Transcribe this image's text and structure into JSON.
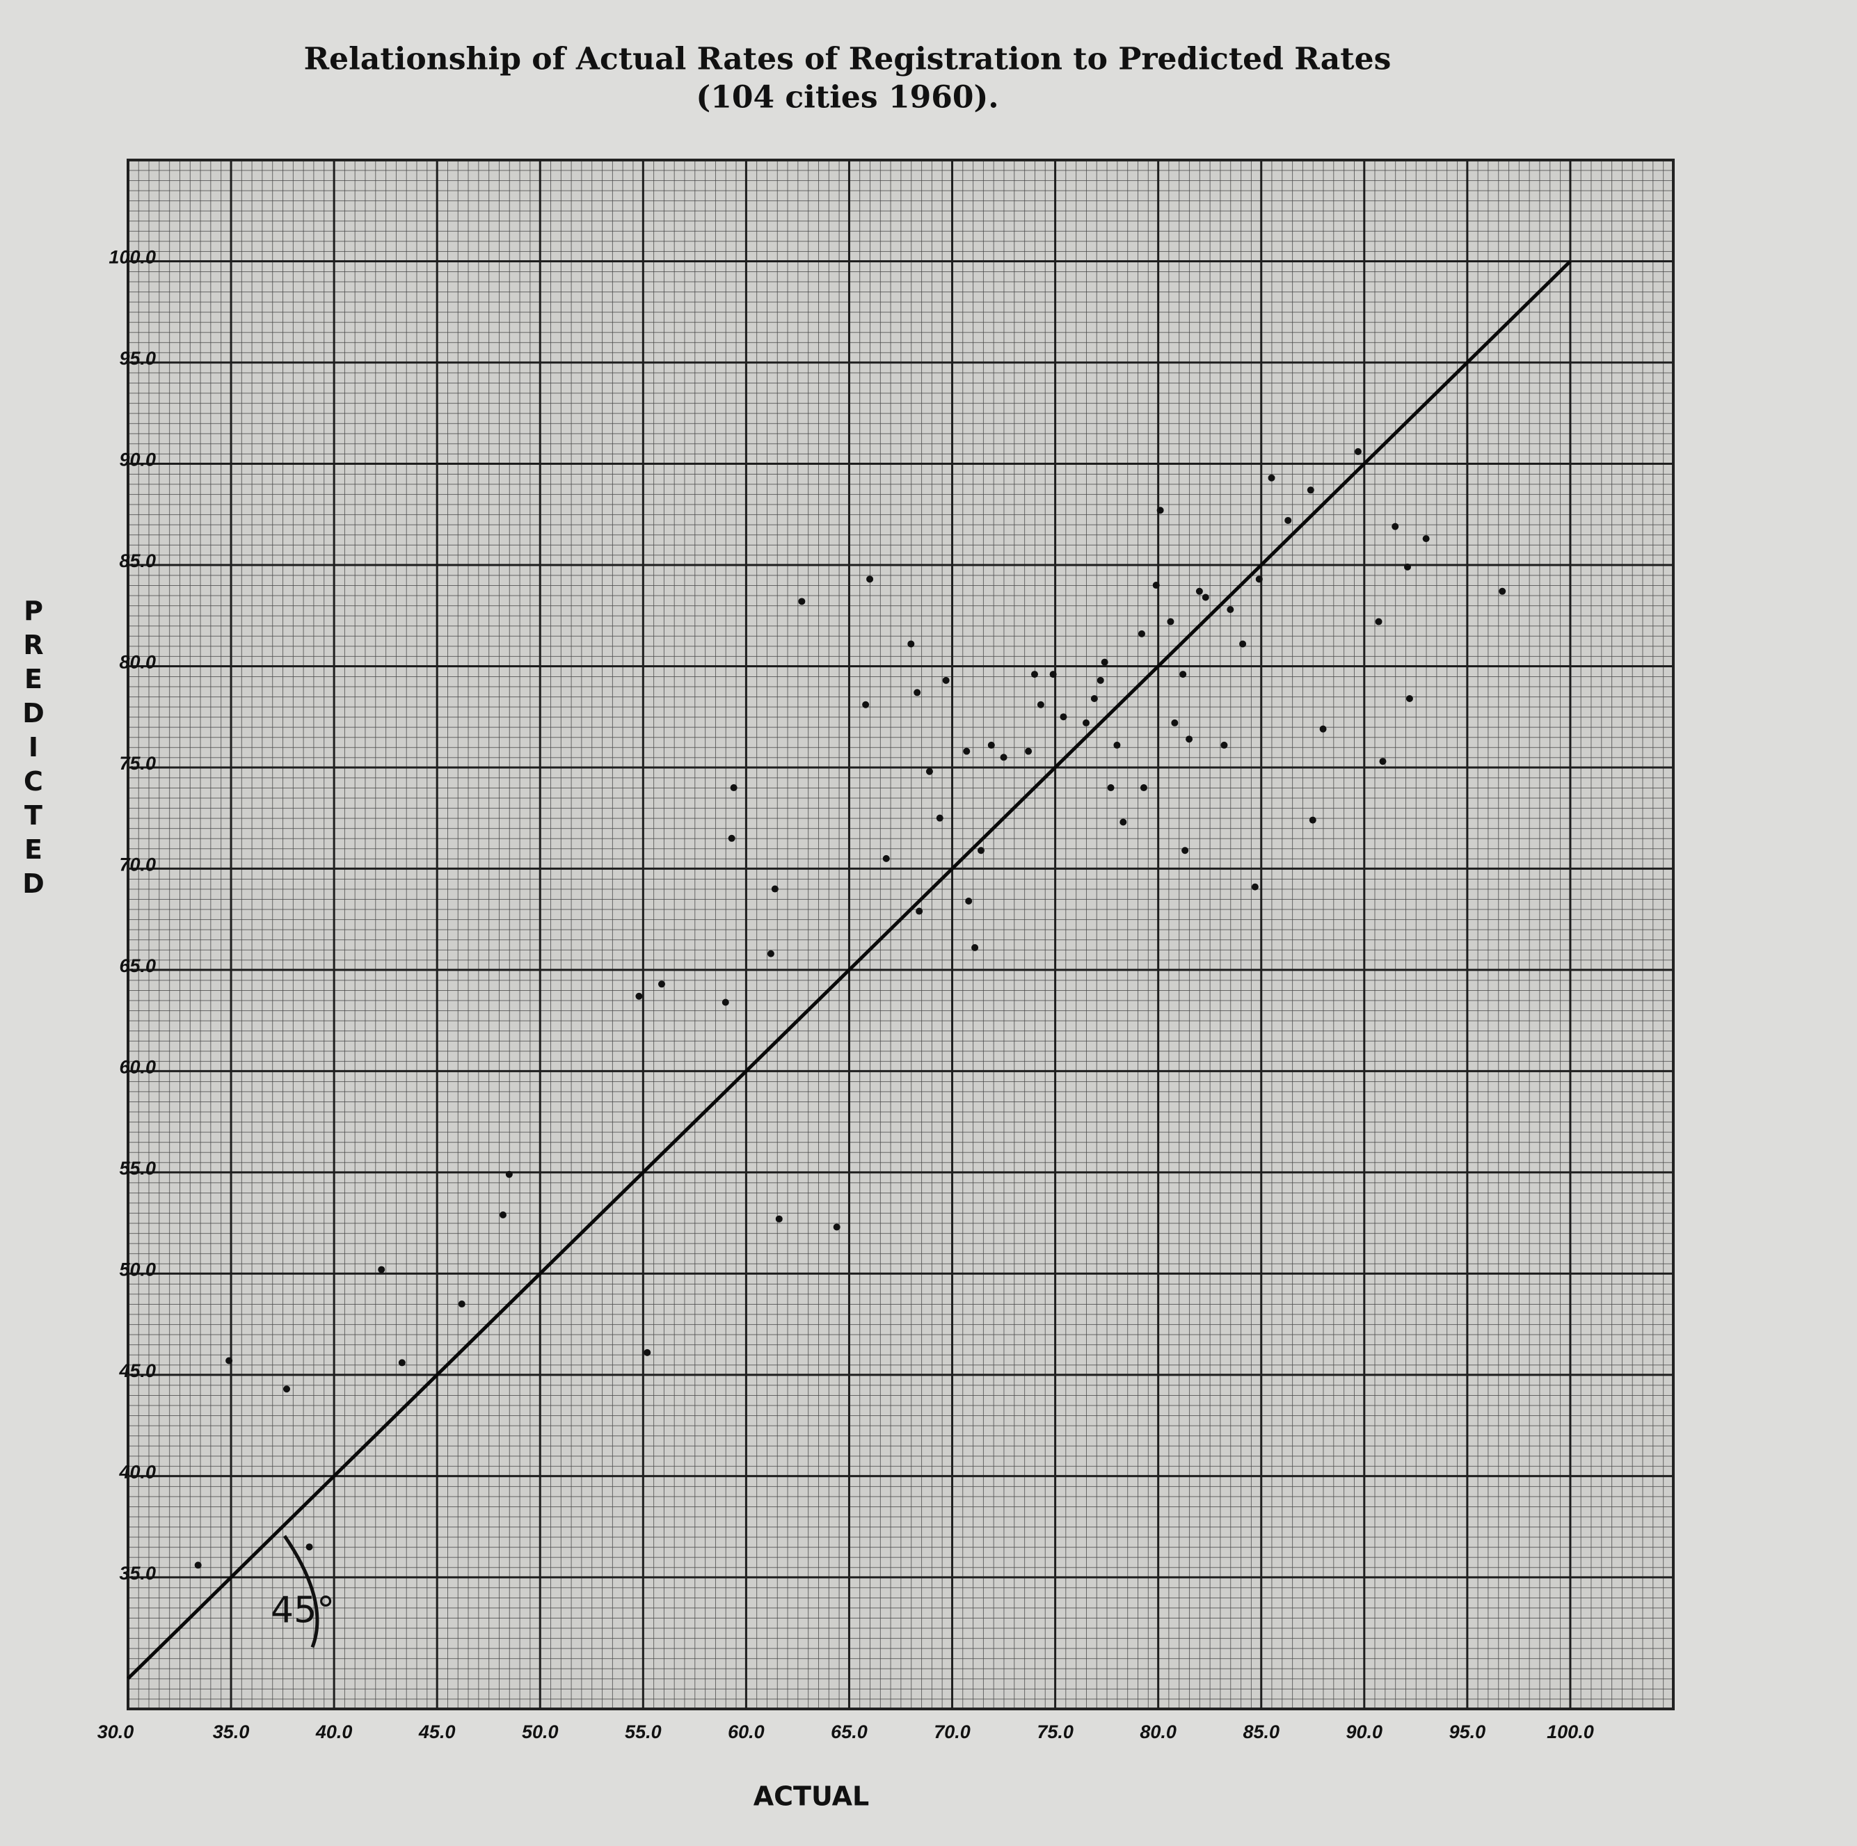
{
  "chart_data": {
    "type": "scatter",
    "title": "Relationship of Actual Rates of Registration to Predicted Rates",
    "subtitle": "(104 cities 1960).",
    "x_label": "ACTUAL",
    "y_label": "PREDICTED",
    "annotation": "45°",
    "color": "#111111",
    "grid": true,
    "xlim": [
      30,
      105
    ],
    "ylim": [
      28.5,
      105
    ],
    "xticks": [
      {
        "value": 30,
        "label": "30.0"
      },
      {
        "value": 35,
        "label": "35.0"
      },
      {
        "value": 40,
        "label": "40.0"
      },
      {
        "value": 45,
        "label": "45.0"
      },
      {
        "value": 50,
        "label": "50.0"
      },
      {
        "value": 55,
        "label": "55.0"
      },
      {
        "value": 60,
        "label": "60.0"
      },
      {
        "value": 65,
        "label": "65.0"
      },
      {
        "value": 70,
        "label": "70.0"
      },
      {
        "value": 75,
        "label": "75.0"
      },
      {
        "value": 80,
        "label": "80.0"
      },
      {
        "value": 85,
        "label": "85.0"
      },
      {
        "value": 90,
        "label": "90.0"
      },
      {
        "value": 95,
        "label": "95.0"
      },
      {
        "value": 100,
        "label": "100.0"
      }
    ],
    "yticks": [
      {
        "value": 35,
        "label": "35.0"
      },
      {
        "value": 40,
        "label": "40.0"
      },
      {
        "value": 45,
        "label": "45.0"
      },
      {
        "value": 50,
        "label": "50.0"
      },
      {
        "value": 55,
        "label": "55.0"
      },
      {
        "value": 60,
        "label": "60.0"
      },
      {
        "value": 65,
        "label": "65.0"
      },
      {
        "value": 70,
        "label": "70.0"
      },
      {
        "value": 75,
        "label": "75.0"
      },
      {
        "value": 80,
        "label": "80.0"
      },
      {
        "value": 85,
        "label": "85.0"
      },
      {
        "value": 90,
        "label": "90.0"
      },
      {
        "value": 95,
        "label": "95.0"
      },
      {
        "value": 100,
        "label": "100.0"
      }
    ],
    "reference_line": {
      "x": [
        30,
        100
      ],
      "y": [
        30,
        100
      ]
    },
    "x": [
      33.4,
      37.7,
      38.8,
      34.9,
      43.3,
      42.3,
      46.2,
      48.2,
      48.5,
      55.2,
      54.8,
      55.9,
      59.0,
      59.4,
      59.3,
      61.2,
      61.4,
      61.6,
      62.7,
      64.4,
      66.0,
      65.8,
      66.8,
      68.0,
      68.3,
      68.4,
      68.9,
      69.7,
      69.4,
      70.8,
      71.1,
      70.7,
      71.4,
      71.9,
      72.5,
      73.7,
      74.0,
      74.3,
      74.9,
      75.4,
      76.5,
      76.9,
      77.2,
      77.4,
      77.7,
      78.0,
      78.3,
      79.2,
      79.3,
      79.9,
      80.1,
      80.6,
      80.8,
      81.2,
      81.5,
      81.3,
      82.0,
      82.3,
      83.5,
      84.1,
      84.9,
      85.5,
      84.7,
      87.4,
      87.5,
      88.0,
      89.7,
      90.7,
      90.9,
      91.5,
      92.1,
      92.2,
      93.0,
      96.7,
      86.3,
      83.2
    ],
    "values": [
      35.6,
      44.3,
      36.5,
      45.7,
      45.6,
      50.2,
      48.5,
      52.9,
      54.9,
      46.1,
      63.7,
      64.3,
      63.4,
      74.0,
      71.5,
      65.8,
      69.0,
      52.7,
      83.2,
      52.3,
      84.3,
      78.1,
      70.5,
      81.1,
      78.7,
      67.9,
      74.8,
      79.3,
      72.5,
      68.4,
      66.1,
      75.8,
      70.9,
      76.1,
      75.5,
      75.8,
      79.6,
      78.1,
      79.6,
      77.5,
      77.2,
      78.4,
      79.3,
      80.2,
      74.0,
      76.1,
      72.3,
      81.6,
      74.0,
      84.0,
      87.7,
      82.2,
      77.2,
      79.6,
      76.4,
      70.9,
      83.7,
      83.4,
      82.8,
      81.1,
      84.3,
      89.3,
      69.1,
      88.7,
      72.4,
      76.9,
      90.6,
      82.2,
      75.3,
      86.9,
      84.9,
      78.4,
      86.3,
      83.7,
      87.2,
      76.1
    ]
  }
}
